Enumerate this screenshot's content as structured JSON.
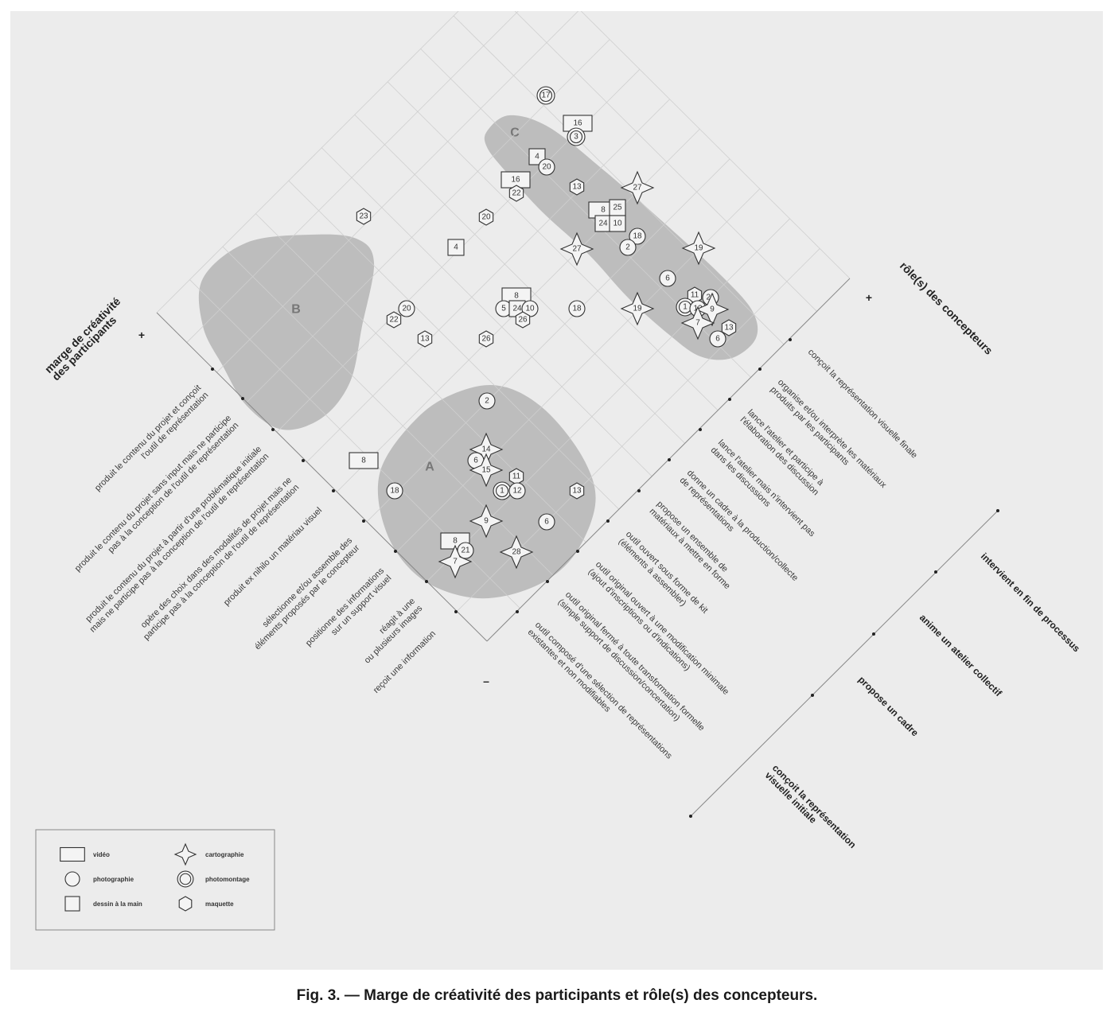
{
  "caption": "Fig. 3. — Marge de créativité des participants et rôle(s) des concepteurs.",
  "axis_left_title": [
    "marge de créativité",
    "des participants"
  ],
  "axis_right_title": "rôle(s) des concepteurs",
  "plus_sign": "+",
  "minus_sign": "–",
  "zones": [
    "A",
    "B",
    "C"
  ],
  "left_axis_labels": [
    [
      "produit le contenu du projet et conçoit",
      "l'outil de représentation"
    ],
    [
      "produit le contenu du projet sans input mais ne participe",
      "pas à la conception de l'outil de représentation"
    ],
    [
      "produit le contenu du projet à partir d'une problématique initiale",
      "mais ne participe pas à la conception de l'outil de représentation"
    ],
    [
      "opère des choix dans des modalités de projet mais ne",
      "participe pas à la conception de l'outil de représentation"
    ],
    [
      "produit ex nihilo un matériau visuel"
    ],
    [
      "sélectionne et/ou assemble des",
      "éléments proposés par le concepteur"
    ],
    [
      "positionne des informations",
      "sur un support visuel"
    ],
    [
      "réagit à une",
      "ou plusieurs images"
    ],
    [
      "reçoit une information"
    ]
  ],
  "right_axis_labels": [
    [
      "conçoit la représentation visuelle finale"
    ],
    [
      "organise et/ou interprète les matériaux",
      "produits par les participants"
    ],
    [
      "lance l'atelier et participe à",
      "l'élaboration des discussion"
    ],
    [
      "lance l'atelier mais n'intervient pas",
      "dans les discussions"
    ],
    [
      "donne un cadre à la production/collecte",
      "de représentations"
    ],
    [
      "propose un ensemble de",
      "matériaux à mettre en forme"
    ],
    [
      "outil ouvert sous forme de kit",
      "(éléments à assembler)"
    ],
    [
      "outil original  ouvert à une modification minimale",
      "(ajout d'inscriptions ou d'indications)"
    ],
    [
      "outil original fermé à toute transformation formelle",
      "(simple support de discussion/concertation)"
    ],
    [
      "outil composé d'une sélection de représentations",
      "existantes et non modifiables"
    ]
  ],
  "process_axis_labels": [
    [
      "intervient en fin de processus"
    ],
    [
      "anime un atelier collectif"
    ],
    [
      "propose un cadre"
    ],
    [
      "conçoit la représentation",
      "visuelle initiale"
    ]
  ],
  "legend": [
    {
      "shape": "video",
      "label": "vidéo"
    },
    {
      "shape": "cartographie",
      "label": "cartographie"
    },
    {
      "shape": "photographie",
      "label": "photographie"
    },
    {
      "shape": "photomontage",
      "label": "photomontage"
    },
    {
      "shape": "dessin",
      "label": "dessin à  la main"
    },
    {
      "shape": "maquette",
      "label": "maquette"
    }
  ],
  "markers": [
    {
      "shape": "photomontage",
      "label": "17"
    },
    {
      "shape": "video",
      "label": "16"
    },
    {
      "shape": "photomontage",
      "label": "3"
    },
    {
      "shape": "dessin",
      "label": "4"
    },
    {
      "shape": "photographie",
      "label": "20"
    },
    {
      "shape": "video",
      "label": "16"
    },
    {
      "shape": "maquette",
      "label": "22"
    },
    {
      "shape": "maquette",
      "label": "13"
    },
    {
      "shape": "cartographie",
      "label": "27"
    },
    {
      "shape": "maquette",
      "label": "23"
    },
    {
      "shape": "maquette",
      "label": "20"
    },
    {
      "shape": "video",
      "label": "8"
    },
    {
      "shape": "dessin",
      "label": "25"
    },
    {
      "shape": "dessin",
      "label": "24"
    },
    {
      "shape": "dessin",
      "label": "10"
    },
    {
      "shape": "dessin",
      "label": "4"
    },
    {
      "shape": "cartographie",
      "label": "27"
    },
    {
      "shape": "photographie",
      "label": "18"
    },
    {
      "shape": "photographie",
      "label": "2"
    },
    {
      "shape": "cartographie",
      "label": "19"
    },
    {
      "shape": "photographie",
      "label": "6"
    },
    {
      "shape": "video",
      "label": "8"
    },
    {
      "shape": "photographie",
      "label": "5"
    },
    {
      "shape": "dessin",
      "label": "24"
    },
    {
      "shape": "photographie",
      "label": "10"
    },
    {
      "shape": "maquette",
      "label": "26"
    },
    {
      "shape": "photographie",
      "label": "18"
    },
    {
      "shape": "cartographie",
      "label": "19"
    },
    {
      "shape": "photographie",
      "label": "20"
    },
    {
      "shape": "maquette",
      "label": "22"
    },
    {
      "shape": "maquette",
      "label": "13"
    },
    {
      "shape": "maquette",
      "label": "26"
    },
    {
      "shape": "maquette",
      "label": "11"
    },
    {
      "shape": "photographie",
      "label": "21"
    },
    {
      "shape": "photomontage",
      "label": "1"
    },
    {
      "shape": "photographie",
      "label": "12"
    },
    {
      "shape": "cartographie",
      "label": "9"
    },
    {
      "shape": "cartographie",
      "label": "7"
    },
    {
      "shape": "maquette",
      "label": "13"
    },
    {
      "shape": "photographie",
      "label": "6"
    },
    {
      "shape": "photographie",
      "label": "2"
    },
    {
      "shape": "video",
      "label": "8"
    },
    {
      "shape": "cartographie",
      "label": "14"
    },
    {
      "shape": "photographie",
      "label": "6"
    },
    {
      "shape": "cartographie",
      "label": "15"
    },
    {
      "shape": "maquette",
      "label": "11"
    },
    {
      "shape": "photomontage",
      "label": "1"
    },
    {
      "shape": "photographie",
      "label": "12"
    },
    {
      "shape": "photographie",
      "label": "18"
    },
    {
      "shape": "maquette",
      "label": "13"
    },
    {
      "shape": "cartographie",
      "label": "9"
    },
    {
      "shape": "photographie",
      "label": "6"
    },
    {
      "shape": "video",
      "label": "8"
    },
    {
      "shape": "photographie",
      "label": "21"
    },
    {
      "shape": "cartographie",
      "label": "7"
    },
    {
      "shape": "cartographie",
      "label": "28"
    }
  ]
}
